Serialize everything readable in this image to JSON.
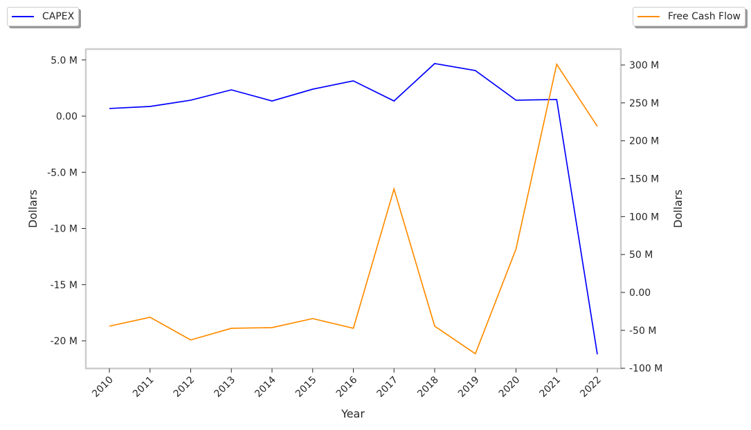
{
  "chart_data": {
    "type": "line",
    "title": "",
    "xlabel": "Year",
    "ylabel_left": "Dollars",
    "ylabel_right": "Dollars",
    "x": [
      2010,
      2011,
      2012,
      2013,
      2014,
      2015,
      2016,
      2017,
      2018,
      2019,
      2020,
      2021,
      2022
    ],
    "x_tick_labels": [
      "2010",
      "2011",
      "2012",
      "2013",
      "2014",
      "2015",
      "2016",
      "2017",
      "2018",
      "2019",
      "2020",
      "2021",
      "2022"
    ],
    "left_ticks": {
      "values": [
        5,
        0,
        -5,
        -10,
        -15,
        -20
      ],
      "labels": [
        "5.0 M",
        "0.00",
        "-5.0 M",
        "-10 M",
        "-15 M",
        "-20 M"
      ]
    },
    "right_ticks": {
      "values": [
        300,
        250,
        200,
        150,
        100,
        50,
        0,
        -50,
        -100
      ],
      "labels": [
        "300 M",
        "250 M",
        "200 M",
        "150 M",
        "100 M",
        "50 M",
        "0.00",
        "-50 M",
        "-100 M"
      ]
    },
    "ylim_left": [
      -22.4,
      6.0
    ],
    "ylim_right": [
      -100,
      320
    ],
    "grid": false,
    "series": [
      {
        "name": "CAPEX",
        "axis": "left",
        "unit": "M",
        "color": "#0000ff",
        "legend": "top-left",
        "values": [
          0.68,
          0.86,
          1.42,
          2.34,
          1.35,
          2.4,
          3.14,
          1.35,
          4.68,
          4.06,
          1.42,
          1.48,
          -21.2
        ]
      },
      {
        "name": "Free Cash Flow",
        "axis": "right",
        "unit": "M",
        "color": "#ff8c00",
        "legend": "top-right",
        "values": [
          -44.5,
          -32.7,
          -62.7,
          -47.3,
          -46.4,
          -34.5,
          -47.3,
          136.4,
          -44.5,
          -80.9,
          57.3,
          300.9,
          219
        ]
      }
    ]
  }
}
